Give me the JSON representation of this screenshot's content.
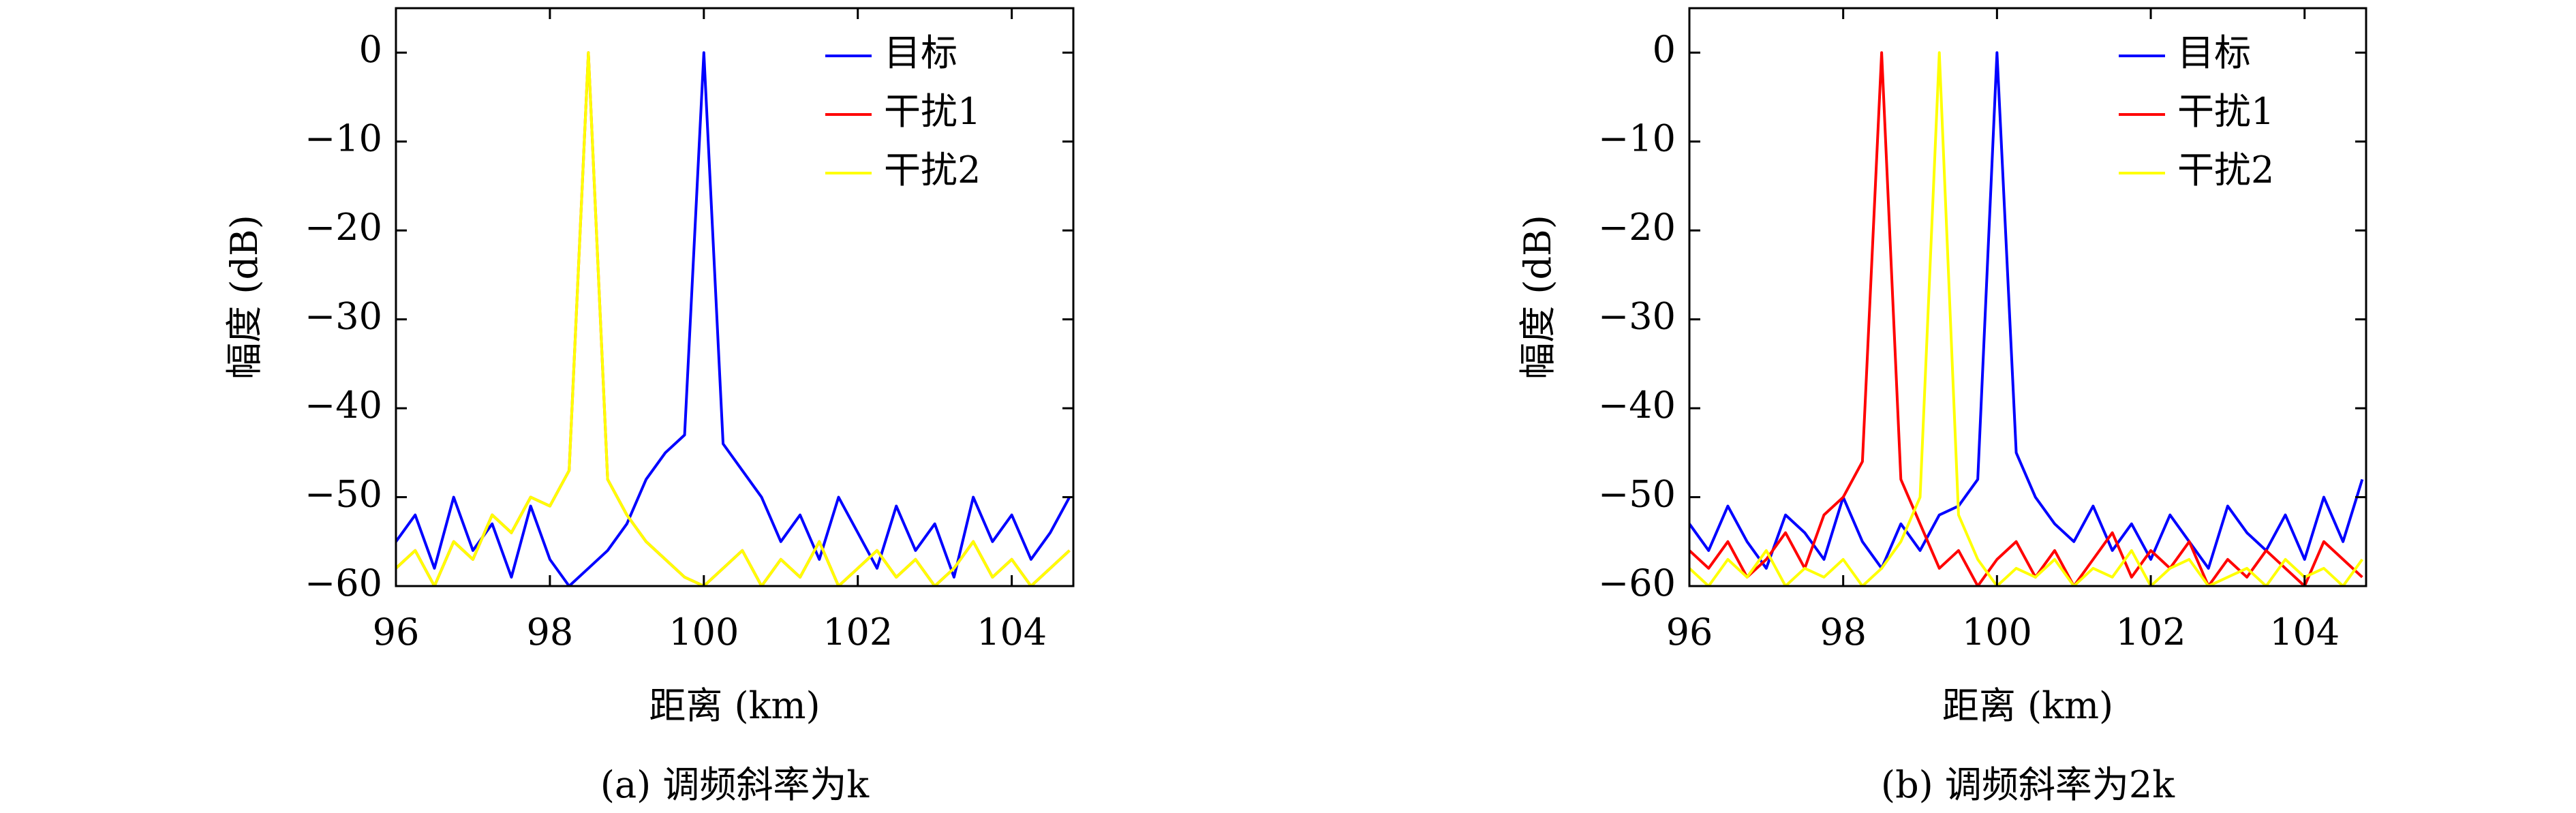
{
  "chart_data": [
    {
      "type": "line",
      "caption": "(a) 调频斜率为k",
      "xlabel": "距离 (km)",
      "ylabel": "幅度 (dB)",
      "xlim": [
        96,
        104.8
      ],
      "ylim": [
        -60,
        5
      ],
      "xticks": [
        96,
        98,
        100,
        102,
        104
      ],
      "yticks": [
        0,
        {
          "value": -10,
          "label": "−10"
        },
        {
          "value": -20,
          "label": "−20"
        },
        {
          "value": -30,
          "label": "−30"
        },
        {
          "value": -40,
          "label": "−40"
        },
        {
          "value": -50,
          "label": "−50"
        },
        {
          "value": -60,
          "label": "−60"
        }
      ],
      "grid": false,
      "legend": "upper right",
      "x": [
        96,
        96.25,
        96.5,
        96.75,
        97,
        97.25,
        97.5,
        97.75,
        98,
        98.25,
        98.5,
        98.75,
        99,
        99.25,
        99.5,
        99.75,
        100,
        100.25,
        100.5,
        100.75,
        101,
        101.25,
        101.5,
        101.75,
        102,
        102.25,
        102.5,
        102.75,
        103,
        103.25,
        103.5,
        103.75,
        104,
        104.25,
        104.5,
        104.75
      ],
      "series": [
        {
          "name": "目标",
          "color": "#0000ff",
          "values": [
            -55,
            -52,
            -58,
            -50,
            -56,
            -53,
            -59,
            -51,
            -57,
            -60,
            -58,
            -56,
            -53,
            -48,
            -45,
            -43,
            0,
            -44,
            -47,
            -50,
            -55,
            -52,
            -57,
            -50,
            -54,
            -58,
            -51,
            -56,
            -53,
            -59,
            -50,
            -55,
            -52,
            -57,
            -54,
            -50
          ]
        },
        {
          "name": "干扰1",
          "color": "#ff0000",
          "values": [
            -58,
            -56,
            -60,
            -55,
            -57,
            -52,
            -54,
            -50,
            -51,
            -47,
            0,
            -48,
            -52,
            -55,
            -57,
            -59,
            -60,
            -58,
            -56,
            -60,
            -57,
            -59,
            -55,
            -60,
            -58,
            -56,
            -59,
            -57,
            -60,
            -58,
            -55,
            -59,
            -57,
            -60,
            -58,
            -56
          ]
        },
        {
          "name": "干扰2",
          "color": "#ffff00",
          "values": [
            -58,
            -56,
            -60,
            -55,
            -57,
            -52,
            -54,
            -50,
            -51,
            -47,
            0,
            -48,
            -52,
            -55,
            -57,
            -59,
            -60,
            -58,
            -56,
            -60,
            -57,
            -59,
            -55,
            -60,
            -58,
            -56,
            -59,
            -57,
            -60,
            -58,
            -55,
            -59,
            -57,
            -60,
            -58,
            -56
          ]
        }
      ]
    },
    {
      "type": "line",
      "caption": "(b) 调频斜率为2k",
      "xlabel": "距离 (km)",
      "ylabel": "幅度 (dB)",
      "xlim": [
        96,
        104.8
      ],
      "ylim": [
        -60,
        5
      ],
      "xticks": [
        96,
        98,
        100,
        102,
        104
      ],
      "yticks": [
        0,
        {
          "value": -10,
          "label": "−10"
        },
        {
          "value": -20,
          "label": "−20"
        },
        {
          "value": -30,
          "label": "−30"
        },
        {
          "value": -40,
          "label": "−40"
        },
        {
          "value": -50,
          "label": "−50"
        },
        {
          "value": -60,
          "label": "−60"
        }
      ],
      "grid": false,
      "legend": "upper right",
      "x": [
        96,
        96.25,
        96.5,
        96.75,
        97,
        97.25,
        97.5,
        97.75,
        98,
        98.25,
        98.5,
        98.75,
        99,
        99.25,
        99.5,
        99.75,
        100,
        100.25,
        100.5,
        100.75,
        101,
        101.25,
        101.5,
        101.75,
        102,
        102.25,
        102.5,
        102.75,
        103,
        103.25,
        103.5,
        103.75,
        104,
        104.25,
        104.5,
        104.75
      ],
      "series": [
        {
          "name": "目标",
          "color": "#0000ff",
          "values": [
            -53,
            -56,
            -51,
            -55,
            -58,
            -52,
            -54,
            -57,
            -50,
            -55,
            -58,
            -53,
            -56,
            -52,
            -51,
            -48,
            0,
            -45,
            -50,
            -53,
            -55,
            -51,
            -56,
            -53,
            -57,
            -52,
            -55,
            -58,
            -51,
            -54,
            -56,
            -52,
            -57,
            -50,
            -55,
            -48
          ]
        },
        {
          "name": "干扰1",
          "color": "#ff0000",
          "values": [
            -56,
            -58,
            -55,
            -59,
            -57,
            -54,
            -58,
            -52,
            -50,
            -46,
            0,
            -48,
            -53,
            -58,
            -56,
            -60,
            -57,
            -55,
            -59,
            -56,
            -60,
            -57,
            -54,
            -59,
            -56,
            -58,
            -55,
            -60,
            -57,
            -59,
            -56,
            -58,
            -60,
            -55,
            -57,
            -59
          ]
        },
        {
          "name": "干扰2",
          "color": "#ffff00",
          "values": [
            -58,
            -60,
            -57,
            -59,
            -56,
            -60,
            -58,
            -59,
            -57,
            -60,
            -58,
            -55,
            -50,
            0,
            -52,
            -57,
            -60,
            -58,
            -59,
            -57,
            -60,
            -58,
            -59,
            -56,
            -60,
            -58,
            -57,
            -60,
            -59,
            -58,
            -60,
            -57,
            -59,
            -58,
            -60,
            -57
          ]
        }
      ]
    }
  ]
}
